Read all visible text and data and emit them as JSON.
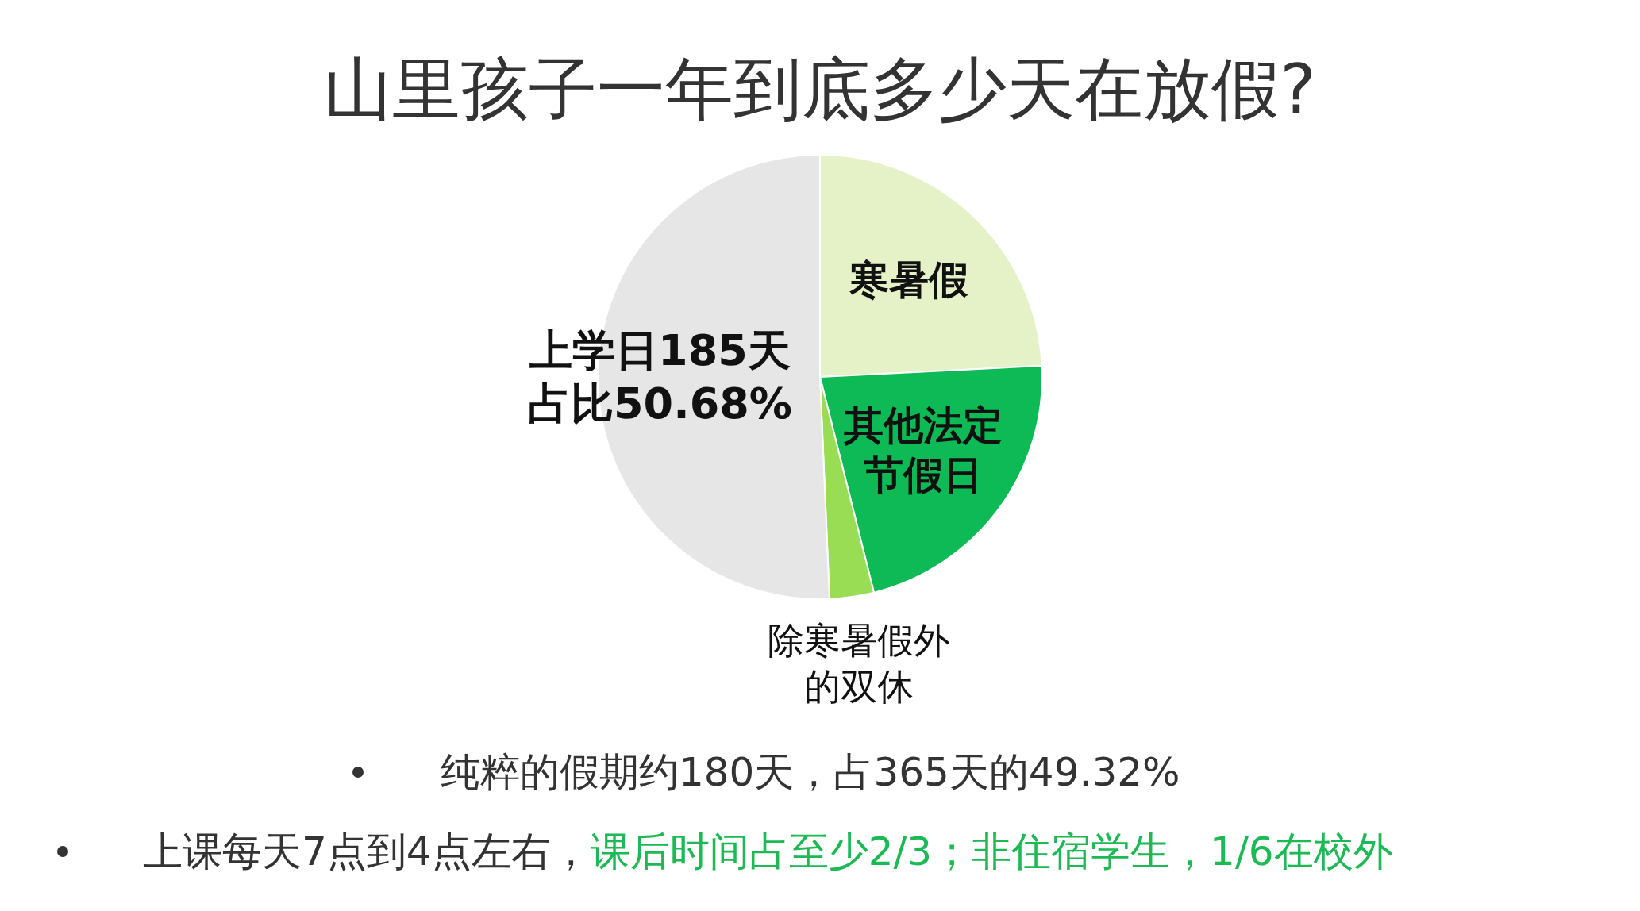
{
  "chart_data": {
    "type": "pie",
    "title": "山里孩子一年到底多少天在放假?",
    "categories": [
      "寒暑假",
      "其他法定节假日",
      "除寒暑假外的双休",
      "上学日185天占比50.68%"
    ],
    "values": [
      24.2,
      21.9,
      3.22,
      50.68
    ],
    "colors": [
      "#e5f2c8",
      "#0dba55",
      "#99dd55",
      "#e6e6e6"
    ],
    "annotations": [
      "纯粹的假期约180天，占365天的49.32%",
      "上课每天7点到4点左右，",
      "课后时间占至少2/3；非住宿学生，1/6在校外"
    ],
    "legend": false
  }
}
